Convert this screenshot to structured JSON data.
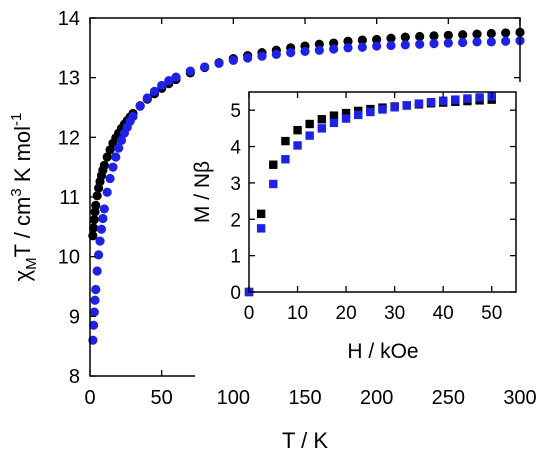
{
  "chart_data": [
    {
      "id": "main",
      "type": "scatter",
      "xlabel": "T / K",
      "ylabel": "χMT / cm3 K mol-1",
      "ylabel_parts": {
        "chi": "χ",
        "sub_m": "M",
        "t_unit": "T / cm",
        "sup_3": "3",
        "k_mol": " K mol",
        "sup_neg1": "-1"
      },
      "xlim": [
        0,
        300
      ],
      "ylim": [
        8,
        14
      ],
      "xticks": [
        0,
        50,
        100,
        150,
        200,
        250,
        300
      ],
      "yticks": [
        8,
        9,
        10,
        11,
        12,
        13,
        14
      ],
      "grid": false,
      "series": [
        {
          "color": "#000000",
          "marker": "circle",
          "x": [
            2,
            2.5,
            3,
            3.5,
            4,
            5,
            6,
            7,
            8,
            9,
            10,
            12,
            14,
            16,
            18,
            20,
            22,
            24,
            26,
            28,
            30,
            35,
            40,
            45,
            50,
            55,
            60,
            70,
            80,
            90,
            100,
            110,
            120,
            130,
            140,
            150,
            160,
            170,
            180,
            190,
            200,
            210,
            220,
            230,
            240,
            250,
            260,
            270,
            280,
            290,
            300
          ],
          "y": [
            10.35,
            10.48,
            10.62,
            10.75,
            10.86,
            11.02,
            11.15,
            11.26,
            11.36,
            11.45,
            11.53,
            11.67,
            11.79,
            11.9,
            11.99,
            12.07,
            12.15,
            12.22,
            12.28,
            12.34,
            12.4,
            12.53,
            12.64,
            12.73,
            12.82,
            12.9,
            12.97,
            13.08,
            13.17,
            13.25,
            13.32,
            13.37,
            13.42,
            13.46,
            13.5,
            13.53,
            13.56,
            13.58,
            13.61,
            13.63,
            13.64,
            13.66,
            13.68,
            13.69,
            13.7,
            13.71,
            13.72,
            13.73,
            13.74,
            13.75,
            13.76
          ]
        },
        {
          "color": "#1f22e6",
          "marker": "circle",
          "x": [
            2,
            2.5,
            3,
            3.5,
            4,
            5,
            6,
            7,
            8,
            9,
            10,
            12,
            14,
            16,
            18,
            20,
            22,
            24,
            26,
            28,
            30,
            35,
            40,
            45,
            50,
            55,
            60,
            70,
            80,
            90,
            100,
            110,
            120,
            130,
            140,
            150,
            160,
            170,
            180,
            190,
            200,
            210,
            220,
            230,
            240,
            250,
            260,
            270,
            280,
            290,
            300
          ],
          "y": [
            8.6,
            8.85,
            9.07,
            9.27,
            9.45,
            9.76,
            10.03,
            10.26,
            10.46,
            10.64,
            10.8,
            11.08,
            11.31,
            11.5,
            11.67,
            11.82,
            11.95,
            12.07,
            12.17,
            12.27,
            12.35,
            12.52,
            12.66,
            12.77,
            12.87,
            12.95,
            13.01,
            13.11,
            13.18,
            13.24,
            13.29,
            13.33,
            13.36,
            13.39,
            13.42,
            13.44,
            13.46,
            13.48,
            13.5,
            13.51,
            13.53,
            13.54,
            13.55,
            13.56,
            13.57,
            13.58,
            13.59,
            13.6,
            13.6,
            13.61,
            13.62
          ]
        }
      ]
    },
    {
      "id": "inset",
      "type": "scatter",
      "xlabel": "H / kOe",
      "ylabel": "M / Nβ",
      "xlim": [
        0,
        55
      ],
      "ylim": [
        0,
        5.5
      ],
      "xticks": [
        0,
        10,
        20,
        30,
        40,
        50
      ],
      "yticks": [
        0,
        1,
        2,
        3,
        4,
        5
      ],
      "grid": false,
      "series": [
        {
          "color": "#000000",
          "marker": "square",
          "x": [
            0,
            2.5,
            5,
            7.5,
            10,
            12.5,
            15,
            17.5,
            20,
            22.5,
            25,
            27.5,
            30,
            32.5,
            35,
            37.5,
            40,
            42.5,
            45,
            47.5,
            50
          ],
          "y": [
            0,
            2.15,
            3.5,
            4.15,
            4.45,
            4.62,
            4.75,
            4.85,
            4.92,
            4.98,
            5.03,
            5.07,
            5.1,
            5.13,
            5.16,
            5.19,
            5.21,
            5.23,
            5.25,
            5.27,
            5.29
          ]
        },
        {
          "color": "#1f22e6",
          "marker": "square",
          "x": [
            0,
            2.5,
            5,
            7.5,
            10,
            12.5,
            15,
            17.5,
            20,
            22.5,
            25,
            27.5,
            30,
            32.5,
            35,
            37.5,
            40,
            42.5,
            45,
            47.5,
            50
          ],
          "y": [
            0,
            1.75,
            2.97,
            3.65,
            4.03,
            4.3,
            4.5,
            4.65,
            4.77,
            4.87,
            4.95,
            5.02,
            5.08,
            5.13,
            5.18,
            5.22,
            5.26,
            5.29,
            5.32,
            5.35,
            5.38
          ]
        }
      ]
    }
  ]
}
